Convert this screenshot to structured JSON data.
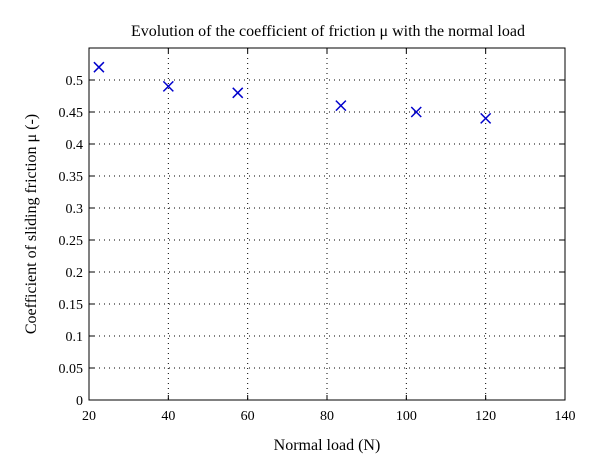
{
  "chart_data": {
    "type": "scatter",
    "title": "Evolution of the coefficient of friction μ with the normal load",
    "xlabel": "Normal load (N)",
    "ylabel": "Coefficient of sliding friction μ (-)",
    "xlim": [
      20,
      140
    ],
    "ylim": [
      0,
      0.55
    ],
    "xticks": [
      20,
      40,
      60,
      80,
      100,
      120,
      140
    ],
    "yticks": [
      0,
      0.05,
      0.1,
      0.15,
      0.2,
      0.25,
      0.3,
      0.35,
      0.4,
      0.45,
      0.5
    ],
    "xtick_labels": [
      "20",
      "40",
      "60",
      "80",
      "100",
      "120",
      "140"
    ],
    "ytick_labels": [
      "0",
      "0.05",
      "0.1",
      "0.15",
      "0.2",
      "0.25",
      "0.3",
      "0.35",
      "0.4",
      "0.45",
      "0.5"
    ],
    "grid": true,
    "marker": "x",
    "marker_color": "#0000cc",
    "x": [
      22.5,
      40,
      57.5,
      83.5,
      102.5,
      120
    ],
    "y": [
      0.52,
      0.49,
      0.48,
      0.46,
      0.45,
      0.44
    ]
  }
}
